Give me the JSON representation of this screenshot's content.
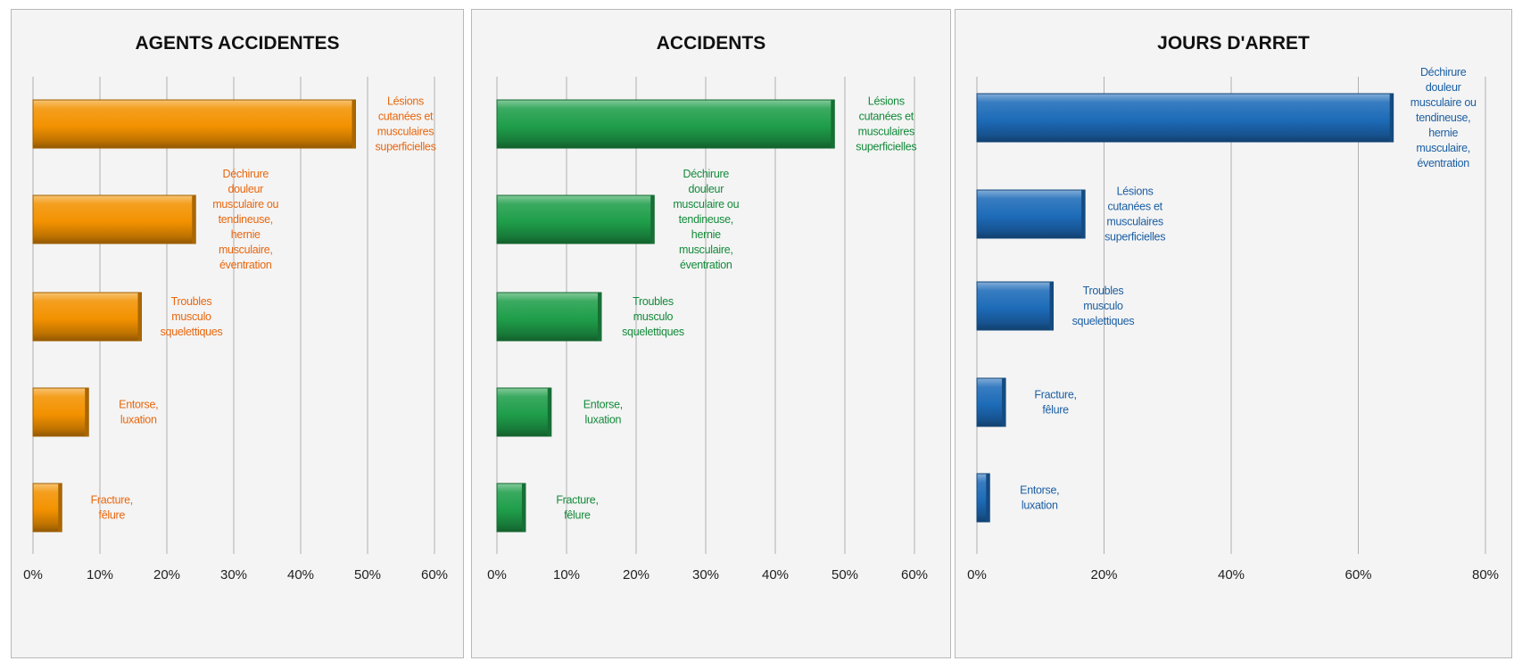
{
  "chart_data": [
    {
      "type": "bar",
      "orientation": "horizontal",
      "title": "AGENTS ACCIDENTES",
      "color": "#f39200",
      "categories": [
        "Lésions cutanées et musculaires superficielles",
        "Déchirure douleur musculaire ou tendineuse, hernie musculaire, éventration",
        "Troubles musculo squelettiques",
        "Entorse, luxation",
        "Fracture, fêlure"
      ],
      "values": [
        48.2,
        24.3,
        16.2,
        8.3,
        4.3
      ],
      "xlim": [
        0,
        60
      ],
      "xticks": [
        "0%",
        "10%",
        "20%",
        "30%",
        "40%",
        "50%",
        "60%"
      ],
      "grid": true
    },
    {
      "type": "bar",
      "orientation": "horizontal",
      "title": "ACCIDENTS",
      "color": "#1f9e4a",
      "categories": [
        "Lésions cutanées et musculaires superficielles",
        "Déchirure douleur musculaire ou tendineuse, hernie musculaire, éventration",
        "Troubles musculo squelettiques",
        "Entorse, luxation",
        "Fracture, fêlure"
      ],
      "values": [
        48.5,
        22.6,
        15.0,
        7.8,
        4.1
      ],
      "xlim": [
        0,
        60
      ],
      "xticks": [
        "0%",
        "10%",
        "20%",
        "30%",
        "40%",
        "50%",
        "60%"
      ],
      "grid": true
    },
    {
      "type": "bar",
      "orientation": "horizontal",
      "title": "JOURS D'ARRET",
      "color": "#1d6bb8",
      "categories": [
        "Déchirure douleur musculaire ou tendineuse, hernie musculaire, éventration",
        "Lésions cutanées et musculaires superficielles",
        "Troubles musculo squelettiques",
        "Fracture, fêlure",
        "Entorse, luxation"
      ],
      "values": [
        65.5,
        17.0,
        12.0,
        4.5,
        2.0
      ],
      "xlim": [
        0,
        80
      ],
      "xticks": [
        "0%",
        "20%",
        "40%",
        "60%",
        "80%"
      ],
      "grid": true
    }
  ]
}
